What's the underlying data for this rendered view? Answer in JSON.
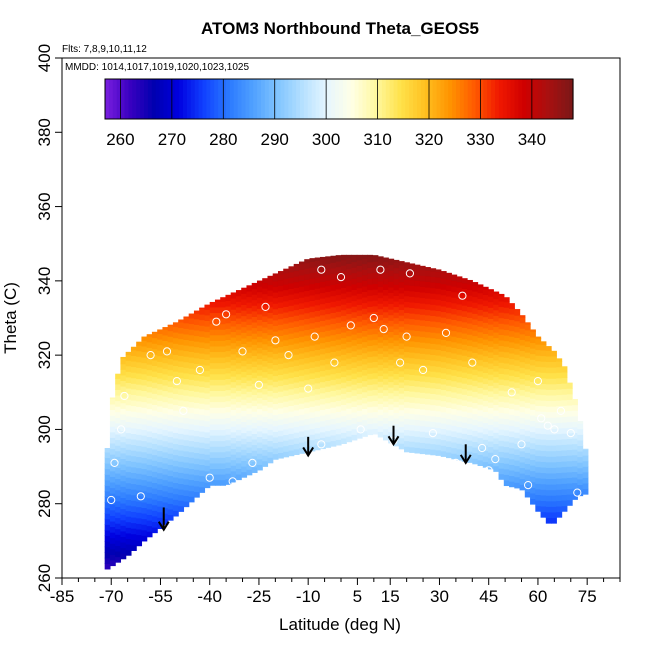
{
  "chart_data": {
    "type": "heatmap",
    "title": "ATOM3 Northbound Theta_GEOS5",
    "flights_note": "Flts: 7,8,9,10,11,12",
    "dates_note": "MMDD: 1014,1017,1019,1020,1023,1025",
    "xlabel": "Latitude (deg N)",
    "ylabel": "Theta (C)",
    "xlim": [
      -85,
      85
    ],
    "ylim": [
      260,
      400
    ],
    "x_ticks": [
      -85,
      -70,
      -55,
      -40,
      -25,
      -10,
      5,
      15,
      30,
      45,
      60,
      75
    ],
    "x_minor_ticks": [
      -80,
      -75,
      -65,
      -60,
      -50,
      -45,
      -35,
      -30,
      -20,
      -15,
      -5,
      0,
      10,
      20,
      25,
      35,
      40,
      50,
      55,
      65,
      70,
      80,
      85
    ],
    "y_ticks": [
      260,
      280,
      300,
      320,
      340,
      360,
      380,
      400
    ],
    "colorbar": {
      "min": 257,
      "max": 348,
      "ticks": [
        260,
        270,
        280,
        290,
        300,
        310,
        320,
        330,
        340
      ],
      "colors": [
        "#7a1fe0",
        "#3a00c0",
        "#0000b0",
        "#0000e0",
        "#1040ff",
        "#2a78ff",
        "#4fa0ff",
        "#80c4ff",
        "#b4e0ff",
        "#e6f6ff",
        "#ffffe6",
        "#fff8a0",
        "#ffe24a",
        "#ffc020",
        "#ff9400",
        "#ff5a00",
        "#f01800",
        "#d00000",
        "#a81010",
        "#7a1818"
      ]
    },
    "boundary": {
      "top": [
        [
          -72,
          287
        ],
        [
          -70,
          307
        ],
        [
          -67,
          319
        ],
        [
          -60,
          325
        ],
        [
          -50,
          329
        ],
        [
          -40,
          334
        ],
        [
          -30,
          338
        ],
        [
          -20,
          342
        ],
        [
          -15,
          344
        ],
        [
          -10,
          346
        ],
        [
          0,
          347
        ],
        [
          10,
          347
        ],
        [
          20,
          345
        ],
        [
          30,
          343
        ],
        [
          40,
          340
        ],
        [
          50,
          336
        ],
        [
          55,
          331
        ],
        [
          60,
          325
        ],
        [
          65,
          321
        ],
        [
          68,
          317
        ],
        [
          72,
          306
        ],
        [
          75,
          292
        ],
        [
          76,
          283
        ]
      ],
      "bottom": [
        [
          -72,
          262
        ],
        [
          -65,
          266
        ],
        [
          -60,
          270
        ],
        [
          -50,
          277
        ],
        [
          -40,
          285
        ],
        [
          -35,
          285
        ],
        [
          -25,
          289
        ],
        [
          -20,
          292
        ],
        [
          -10,
          294
        ],
        [
          0,
          296
        ],
        [
          10,
          299
        ],
        [
          20,
          294
        ],
        [
          30,
          293
        ],
        [
          40,
          291
        ],
        [
          47,
          289
        ],
        [
          50,
          285
        ],
        [
          55,
          284
        ],
        [
          60,
          278
        ],
        [
          64,
          274
        ],
        [
          68,
          278
        ],
        [
          72,
          282
        ],
        [
          76,
          283
        ]
      ]
    },
    "observations": [
      [
        -70,
        281
      ],
      [
        -69,
        291
      ],
      [
        -67,
        300
      ],
      [
        -66,
        309
      ],
      [
        -61,
        282
      ],
      [
        -58,
        320
      ],
      [
        -53,
        321
      ],
      [
        -50,
        313
      ],
      [
        -48,
        305
      ],
      [
        -43,
        316
      ],
      [
        -40,
        287
      ],
      [
        -38,
        329
      ],
      [
        -35,
        331
      ],
      [
        -33,
        286
      ],
      [
        -30,
        321
      ],
      [
        -27,
        291
      ],
      [
        -25,
        312
      ],
      [
        -23,
        333
      ],
      [
        -20,
        324
      ],
      [
        -16,
        320
      ],
      [
        -10,
        311
      ],
      [
        -8,
        325
      ],
      [
        -6,
        296
      ],
      [
        -2,
        318
      ],
      [
        0,
        341
      ],
      [
        -6,
        343
      ],
      [
        3,
        328
      ],
      [
        6,
        300
      ],
      [
        10,
        330
      ],
      [
        12,
        343
      ],
      [
        13,
        327
      ],
      [
        16,
        297
      ],
      [
        18,
        318
      ],
      [
        20,
        325
      ],
      [
        21,
        342
      ],
      [
        25,
        316
      ],
      [
        28,
        299
      ],
      [
        32,
        326
      ],
      [
        35,
        291
      ],
      [
        37,
        336
      ],
      [
        40,
        318
      ],
      [
        43,
        295
      ],
      [
        45,
        289
      ],
      [
        47,
        292
      ],
      [
        52,
        310
      ],
      [
        55,
        296
      ],
      [
        57,
        285
      ],
      [
        60,
        313
      ],
      [
        61,
        303
      ],
      [
        63,
        301
      ],
      [
        65,
        300
      ],
      [
        67,
        305
      ],
      [
        70,
        299
      ],
      [
        72,
        283
      ]
    ],
    "annotations": [
      {
        "type": "down-arrow",
        "x": -54,
        "y_from": 279,
        "y_to": 273
      },
      {
        "type": "down-arrow",
        "x": -10,
        "y_from": 298,
        "y_to": 293
      },
      {
        "type": "down-arrow",
        "x": 16,
        "y_from": 301,
        "y_to": 296
      },
      {
        "type": "down-arrow",
        "x": 38,
        "y_from": 296,
        "y_to": 291
      }
    ]
  }
}
